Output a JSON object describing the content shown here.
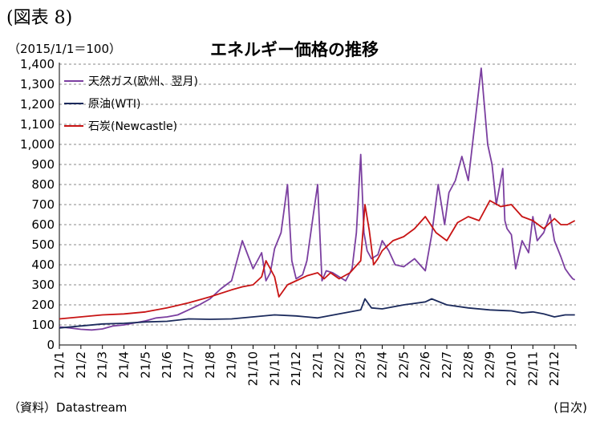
{
  "figure_label": "(図表 8)",
  "unit_label": "（2015/1/1＝100）",
  "source_label": "（資料）Datastream",
  "x_unit_label": "(日次)",
  "chart_data": {
    "type": "line",
    "title": "エネルギー価格の推移",
    "xlabel": "",
    "ylabel": "",
    "ylim": [
      0,
      1400
    ],
    "grid": "horizontal dashed",
    "legend_position": "top-left",
    "y_ticks": [
      "0",
      "100",
      "200",
      "300",
      "400",
      "500",
      "600",
      "700",
      "800",
      "900",
      "1,000",
      "1,100",
      "1,200",
      "1,300",
      "1,400"
    ],
    "x_ticks": [
      "21/1",
      "21/2",
      "21/3",
      "21/4",
      "21/5",
      "21/6",
      "21/7",
      "21/8",
      "21/9",
      "21/10",
      "21/11",
      "21/12",
      "22/1",
      "22/2",
      "22/3",
      "22/4",
      "22/5",
      "22/6",
      "22/7",
      "22/8",
      "22/9",
      "22/10",
      "22/11",
      "22/12"
    ],
    "x_unit": "month index (0 = 2021/1/1, 24 = 2023/1/1)",
    "series": [
      {
        "name": "天然ガス(欧州、翌月)",
        "color": "#7B3FA0",
        "x": [
          0,
          0.5,
          1,
          1.5,
          2,
          2.5,
          3,
          3.5,
          4,
          4.5,
          5,
          5.5,
          6,
          6.5,
          7,
          7.5,
          8,
          8.5,
          9,
          9.2,
          9.4,
          9.6,
          9.8,
          10,
          10.3,
          10.6,
          10.8,
          11,
          11.3,
          11.5,
          11.8,
          12,
          12.2,
          12.4,
          12.7,
          13,
          13.3,
          13.6,
          13.8,
          14,
          14.15,
          14.3,
          14.5,
          14.8,
          15,
          15.3,
          15.6,
          16,
          16.5,
          17,
          17.3,
          17.6,
          17.9,
          18.1,
          18.4,
          18.7,
          19,
          19.3,
          19.6,
          19.9,
          20.1,
          20.3,
          20.5,
          20.6,
          20.7,
          20.8,
          21,
          21.2,
          21.5,
          21.8,
          22,
          22.2,
          22.5,
          22.8,
          23,
          23.3,
          23.5,
          23.7,
          23.85,
          23.95
        ],
        "values": [
          90,
          85,
          78,
          75,
          80,
          95,
          100,
          110,
          120,
          135,
          140,
          150,
          175,
          200,
          230,
          280,
          320,
          520,
          380,
          420,
          460,
          320,
          360,
          480,
          560,
          800,
          420,
          330,
          350,
          420,
          650,
          800,
          320,
          370,
          360,
          340,
          320,
          380,
          560,
          950,
          560,
          470,
          430,
          450,
          520,
          470,
          400,
          390,
          430,
          370,
          550,
          800,
          600,
          760,
          820,
          940,
          820,
          1100,
          1380,
          1000,
          900,
          700,
          820,
          880,
          620,
          580,
          550,
          380,
          520,
          460,
          640,
          520,
          560,
          650,
          520,
          440,
          380,
          350,
          330,
          325
        ]
      },
      {
        "name": "原油(WTI)",
        "color": "#1B2A5C",
        "x": [
          0,
          1,
          2,
          3,
          4,
          5,
          6,
          7,
          8,
          9,
          10,
          11,
          12,
          13,
          14,
          14.2,
          14.5,
          15,
          16,
          17,
          17.3,
          18,
          19,
          20,
          21,
          21.5,
          22,
          22.5,
          23,
          23.5,
          23.95
        ],
        "values": [
          85,
          95,
          105,
          108,
          115,
          118,
          130,
          128,
          130,
          140,
          150,
          145,
          135,
          155,
          175,
          230,
          185,
          180,
          200,
          215,
          230,
          200,
          185,
          175,
          170,
          160,
          165,
          155,
          140,
          150,
          150
        ]
      },
      {
        "name": "石炭(Newcastle)",
        "color": "#C81414",
        "x": [
          0,
          1,
          2,
          3,
          4,
          5,
          6,
          7,
          8,
          8.5,
          9,
          9.4,
          9.6,
          9.8,
          10,
          10.2,
          10.6,
          11,
          11.5,
          12,
          12.3,
          12.6,
          13,
          13.5,
          14,
          14.2,
          14.4,
          14.6,
          14.8,
          15,
          15.5,
          16,
          16.5,
          17,
          17.5,
          18,
          18.5,
          19,
          19.5,
          20,
          20.5,
          21,
          21.5,
          22,
          22.5,
          23,
          23.3,
          23.6,
          23.95
        ],
        "values": [
          130,
          140,
          150,
          155,
          165,
          185,
          210,
          240,
          275,
          290,
          300,
          340,
          420,
          380,
          340,
          240,
          300,
          320,
          345,
          360,
          330,
          360,
          330,
          360,
          420,
          700,
          570,
          400,
          430,
          470,
          520,
          540,
          580,
          640,
          560,
          520,
          610,
          640,
          620,
          720,
          690,
          700,
          640,
          620,
          580,
          630,
          600,
          600,
          620
        ]
      }
    ]
  }
}
